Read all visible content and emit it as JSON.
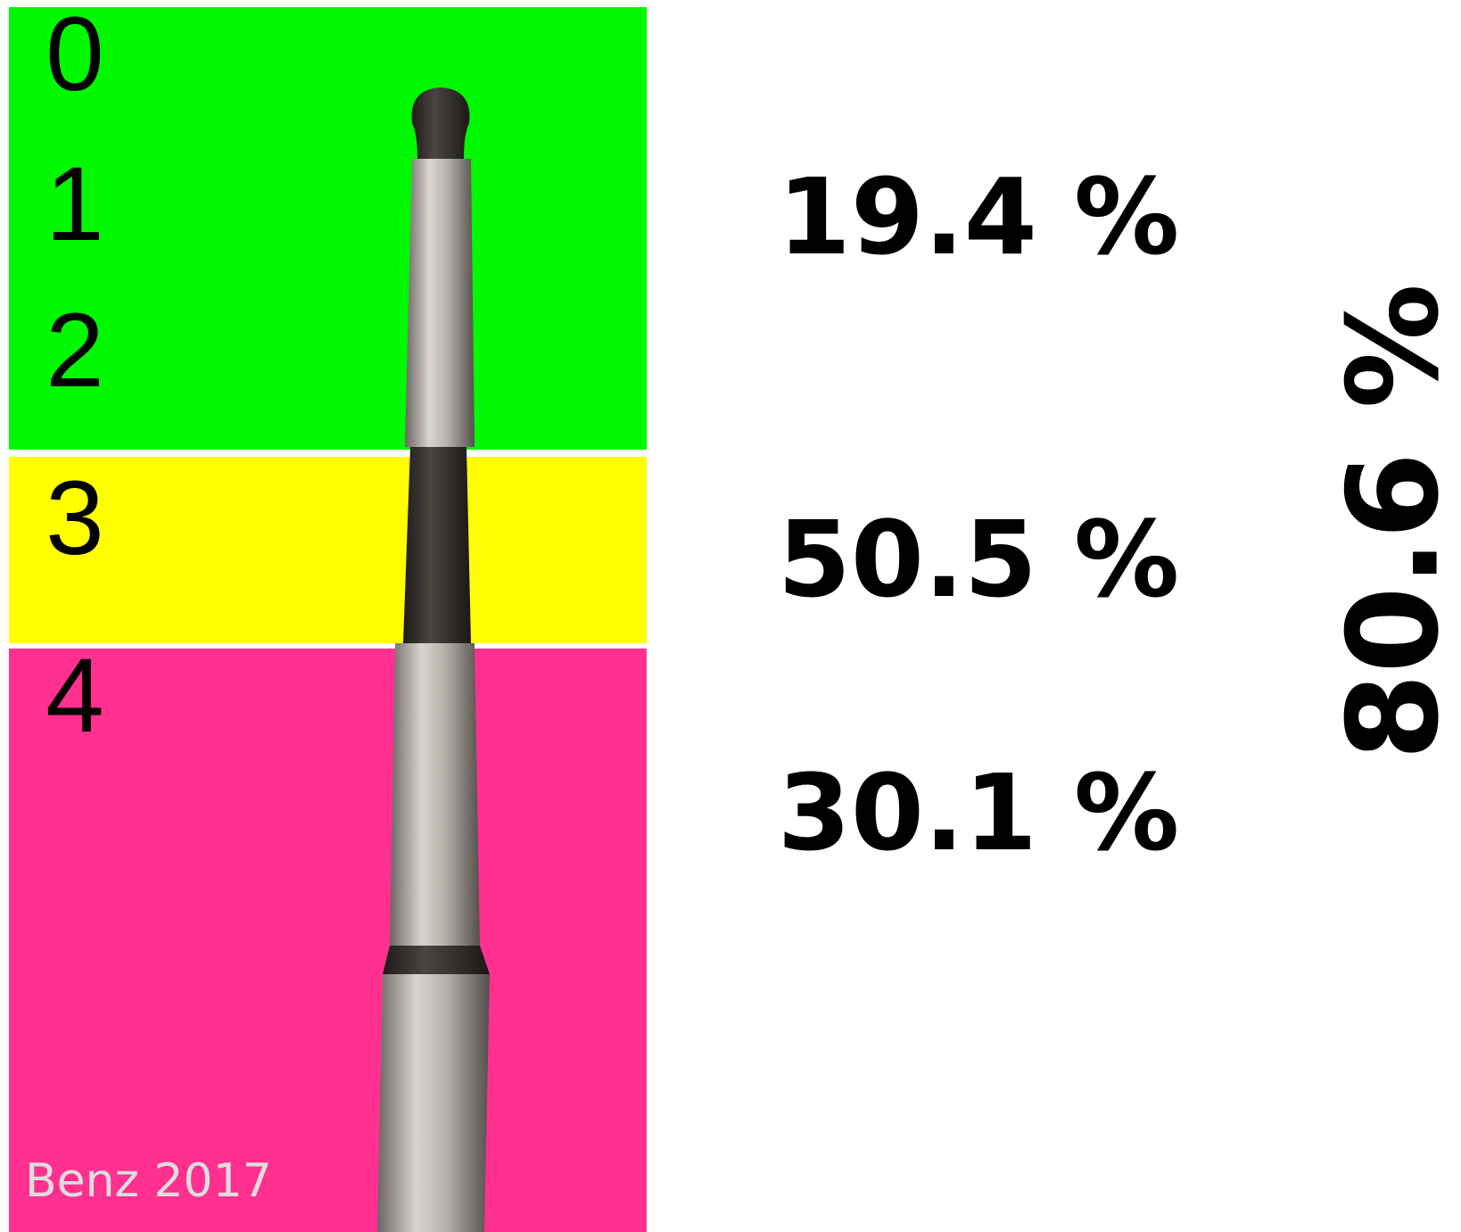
{
  "levels": [
    "0",
    "1",
    "2",
    "3",
    "4"
  ],
  "groups": [
    {
      "percent": "19.4 %"
    },
    {
      "percent": "50.5 %"
    },
    {
      "percent": "30.1 %"
    }
  ],
  "total": "80.6 %",
  "credit": "Benz 2017"
}
